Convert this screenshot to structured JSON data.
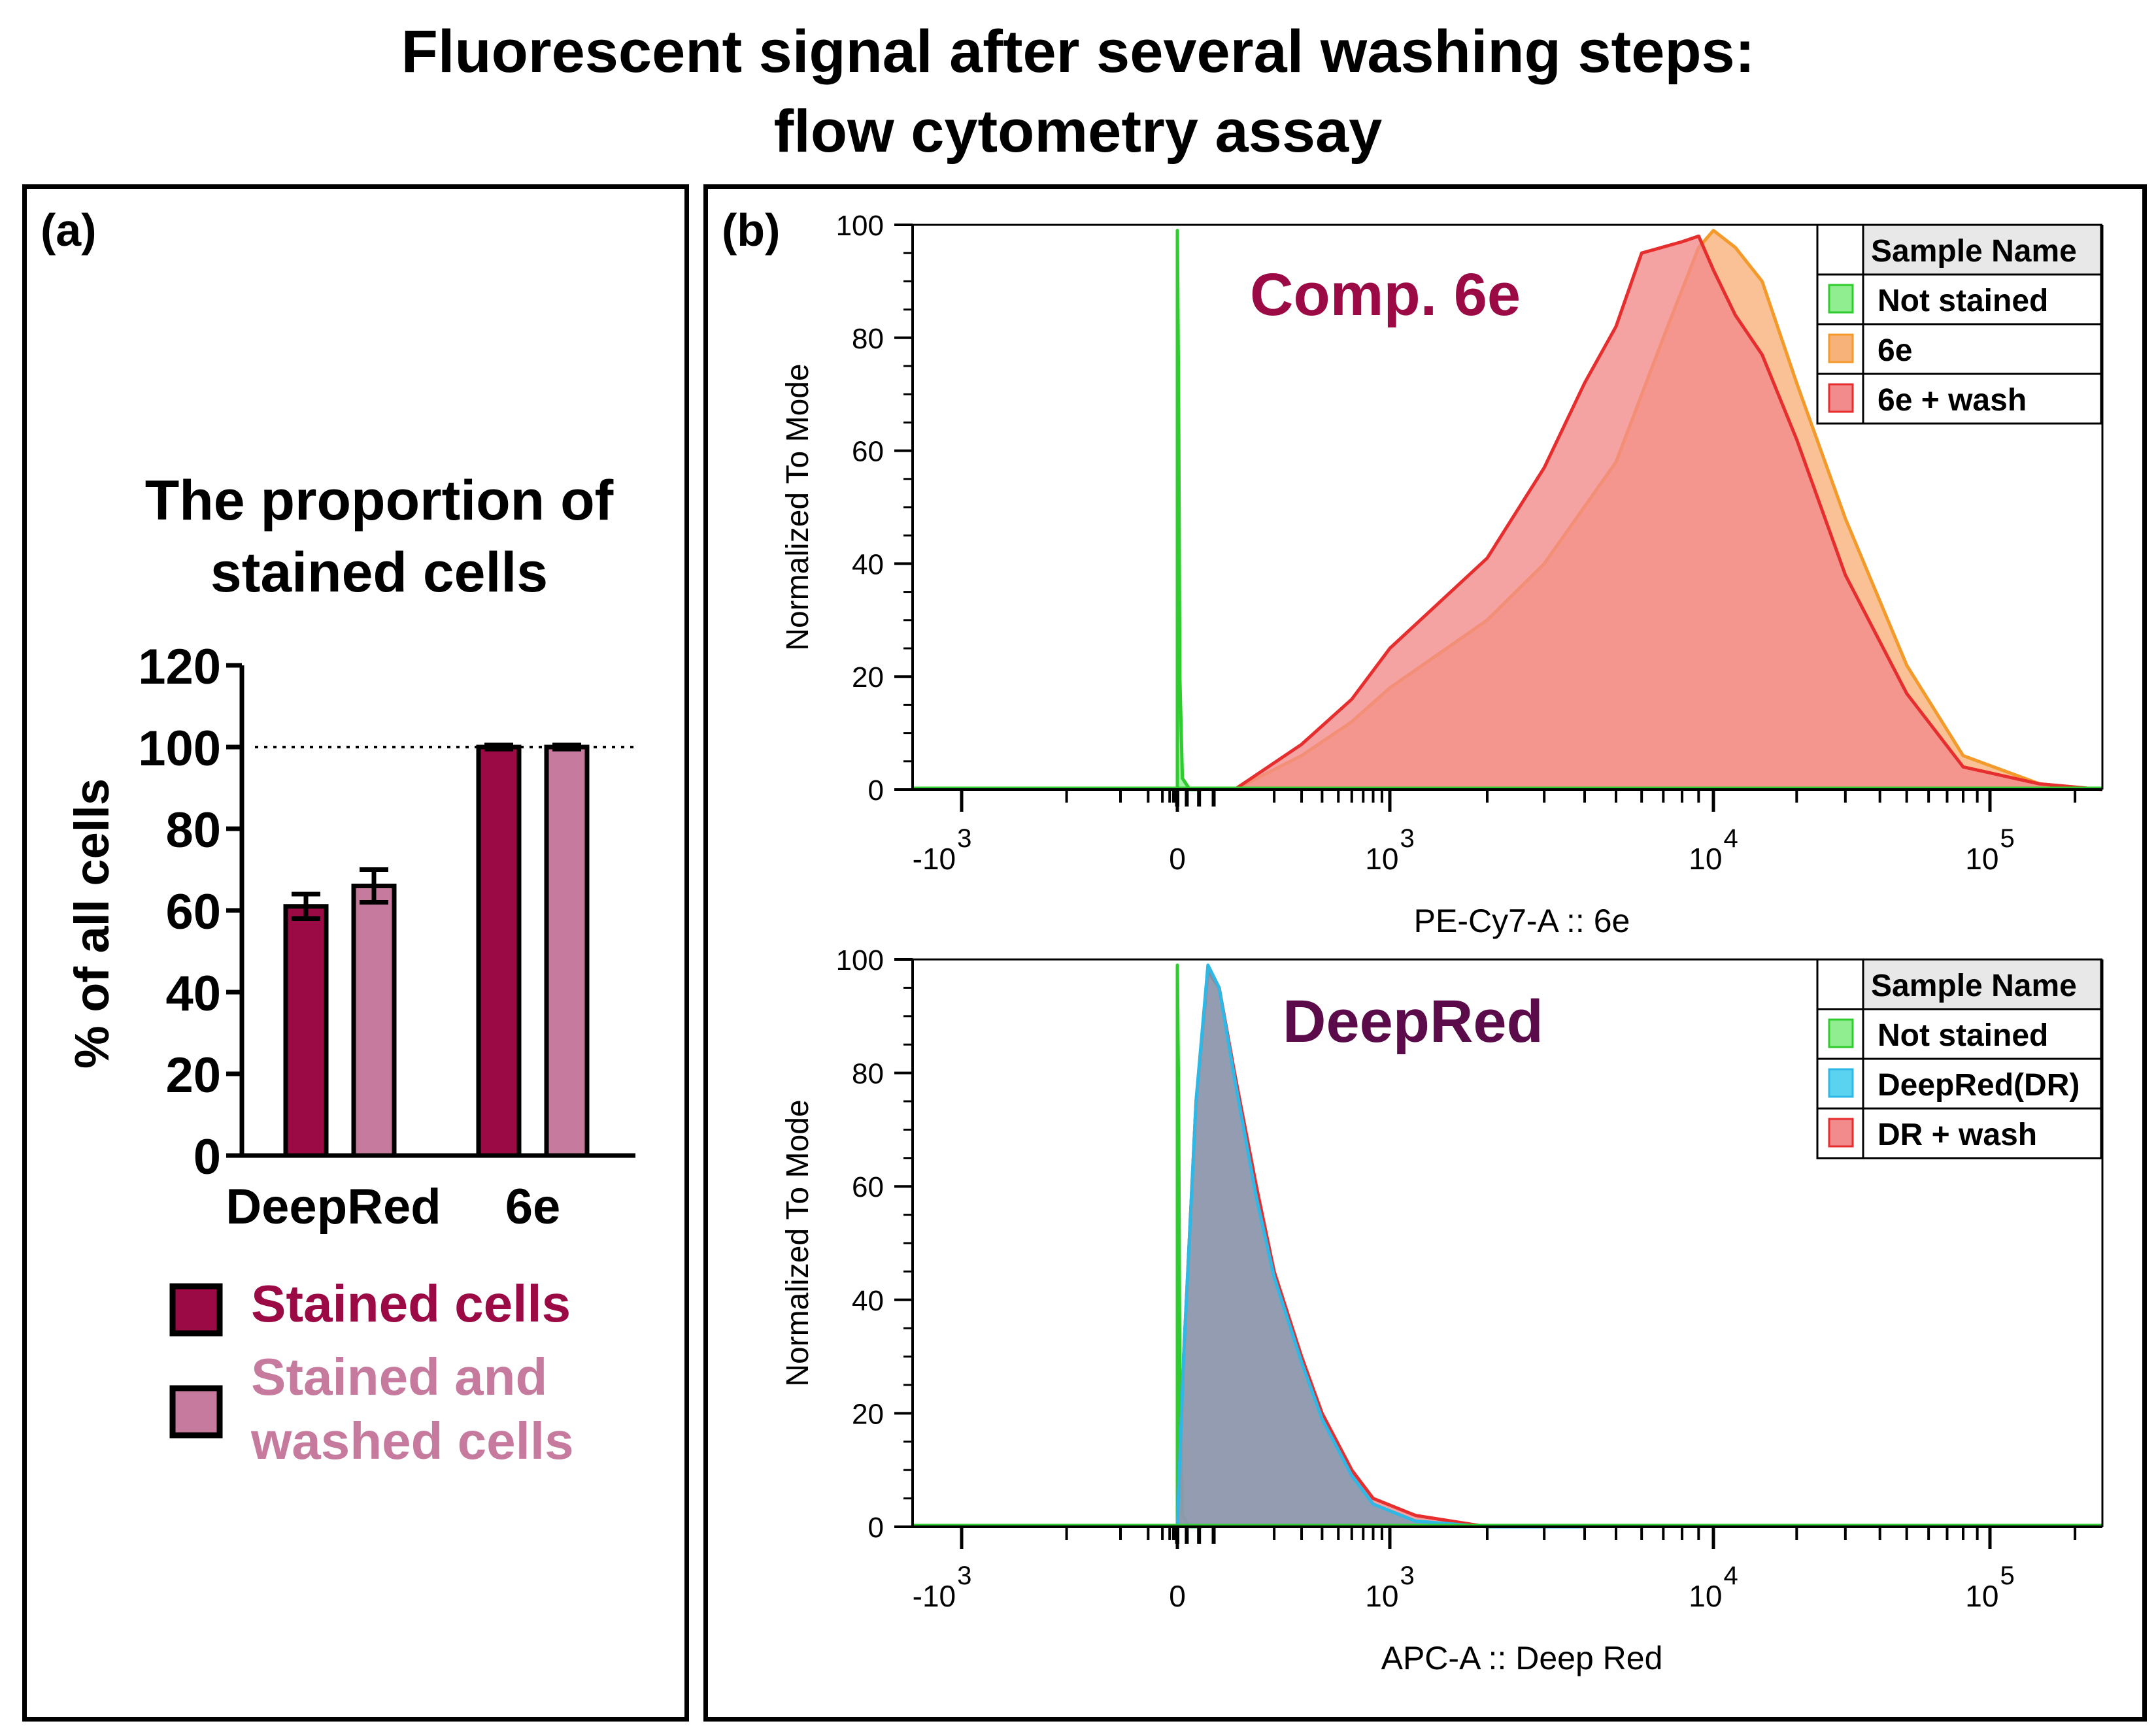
{
  "title": {
    "line1": "Fluorescent signal after several washing steps:",
    "line2": "flow cytometry assay"
  },
  "panel_a": {
    "label": "(a)",
    "chart_title_line1": "The proportion of",
    "chart_title_line2": "stained cells",
    "legend": [
      {
        "label": "Stained cells",
        "color": "#9b0a45"
      },
      {
        "label_line1": "Stained and",
        "label_line2": "washed cells",
        "color": "#c67b9e"
      }
    ]
  },
  "panel_b": {
    "label": "(b)",
    "top": {
      "annotation": "Comp. 6e",
      "annotation_color": "#9b0a45",
      "legend_header": "Sample Name",
      "legend": [
        {
          "label": "Not stained",
          "color": "#90ee90"
        },
        {
          "label": "6e",
          "color": "#f7b27a"
        },
        {
          "label": "6e + wash",
          "color": "#f28b8b"
        }
      ]
    },
    "bottom": {
      "annotation": "DeepRed",
      "annotation_color": "#5b0a4a",
      "legend_header": "Sample Name",
      "legend": [
        {
          "label": "Not stained",
          "color": "#90ee90"
        },
        {
          "label": "DeepRed(DR)",
          "color": "#5ad3f0"
        },
        {
          "label": "DR + wash",
          "color": "#f28b8b"
        }
      ]
    }
  },
  "chart_data": [
    {
      "type": "bar",
      "title": "The proportion of stained cells",
      "xlabel": "",
      "ylabel": "% of all cells",
      "ylim": [
        0,
        120
      ],
      "yticks": [
        0,
        20,
        40,
        60,
        80,
        100,
        120
      ],
      "reference_line": 100,
      "categories": [
        "DeepRed",
        "6e"
      ],
      "series": [
        {
          "name": "Stained cells",
          "color": "#9b0a45",
          "values": [
            61,
            100
          ],
          "errors": [
            3,
            0.5
          ]
        },
        {
          "name": "Stained and washed cells",
          "color": "#c67b9e",
          "values": [
            66,
            100
          ],
          "errors": [
            4,
            0.5
          ]
        }
      ]
    },
    {
      "type": "area",
      "title": "Comp. 6e",
      "xlabel": "PE-Cy7-A :: 6e",
      "ylabel": "Normalized To Mode",
      "ylim": [
        0,
        100
      ],
      "yticks": [
        0,
        20,
        40,
        60,
        80,
        100
      ],
      "xtick_labels": [
        {
          "base": "-10",
          "exp": "3"
        },
        {
          "base": "0",
          "exp": ""
        },
        {
          "base": "10",
          "exp": "3"
        },
        {
          "base": "10",
          "exp": "4"
        },
        {
          "base": "10",
          "exp": "5"
        }
      ],
      "x_scale_positions": [
        -1000,
        0,
        1000,
        10000,
        100000
      ],
      "series": [
        {
          "name": "Not stained",
          "color": "#90ee90",
          "stroke": "#2ecc2e",
          "x": [
            -20,
            -8,
            -4,
            -2,
            0,
            2,
            4,
            8,
            20,
            40
          ],
          "y": [
            0,
            1,
            20,
            70,
            99,
            70,
            20,
            2,
            0,
            0
          ]
        },
        {
          "name": "6e",
          "color": "#f7b27a",
          "stroke": "#f39a2b",
          "x": [
            100,
            300,
            600,
            1000,
            2000,
            3000,
            5000,
            7000,
            9000,
            10000,
            12000,
            15000,
            20000,
            30000,
            50000,
            80000,
            150000,
            250000
          ],
          "y": [
            0,
            6,
            12,
            18,
            30,
            40,
            58,
            80,
            96,
            99,
            96,
            90,
            72,
            48,
            22,
            6,
            1,
            0
          ]
        },
        {
          "name": "6e + wash",
          "color": "#f28b8b",
          "stroke": "#e62e2e",
          "x": [
            100,
            300,
            600,
            1000,
            2000,
            3000,
            4000,
            5000,
            6000,
            8000,
            9000,
            10000,
            12000,
            15000,
            20000,
            30000,
            50000,
            80000,
            150000,
            250000
          ],
          "y": [
            0,
            8,
            16,
            25,
            41,
            57,
            72,
            82,
            95,
            97,
            98,
            92,
            84,
            77,
            62,
            38,
            17,
            4,
            1,
            0
          ]
        }
      ]
    },
    {
      "type": "area",
      "title": "DeepRed",
      "xlabel": "APC-A :: Deep Red",
      "ylabel": "Normalized To Mode",
      "ylim": [
        0,
        100
      ],
      "yticks": [
        0,
        20,
        40,
        60,
        80,
        100
      ],
      "xtick_labels": [
        {
          "base": "-10",
          "exp": "3"
        },
        {
          "base": "0",
          "exp": ""
        },
        {
          "base": "10",
          "exp": "3"
        },
        {
          "base": "10",
          "exp": "4"
        },
        {
          "base": "10",
          "exp": "5"
        }
      ],
      "x_scale_positions": [
        -1000,
        0,
        1000,
        10000,
        100000
      ],
      "series": [
        {
          "name": "Not stained",
          "color": "#90ee90",
          "stroke": "#2ecc2e",
          "x": [
            -20,
            -8,
            -4,
            -2,
            0,
            2,
            4,
            8,
            20,
            40
          ],
          "y": [
            0,
            1,
            25,
            75,
            99,
            75,
            25,
            2,
            0,
            0
          ]
        },
        {
          "name": "DR + wash",
          "color": "#f28b8b",
          "stroke": "#e62e2e",
          "x": [
            -20,
            10,
            30,
            50,
            70,
            100,
            150,
            200,
            300,
            400,
            600,
            800,
            1200,
            2000,
            4000
          ],
          "y": [
            0,
            30,
            75,
            98,
            95,
            80,
            60,
            45,
            30,
            20,
            10,
            5,
            2,
            0,
            0
          ]
        },
        {
          "name": "DeepRed(DR)",
          "color": "#5ad3f0",
          "stroke": "#2fb8e6",
          "fill": "#7a9bb4",
          "x": [
            -20,
            10,
            30,
            50,
            70,
            100,
            150,
            200,
            300,
            400,
            600,
            800,
            1200,
            2000,
            4000
          ],
          "y": [
            0,
            30,
            75,
            99,
            95,
            79,
            58,
            44,
            29,
            19,
            9,
            4,
            1,
            0,
            0
          ]
        }
      ]
    }
  ]
}
